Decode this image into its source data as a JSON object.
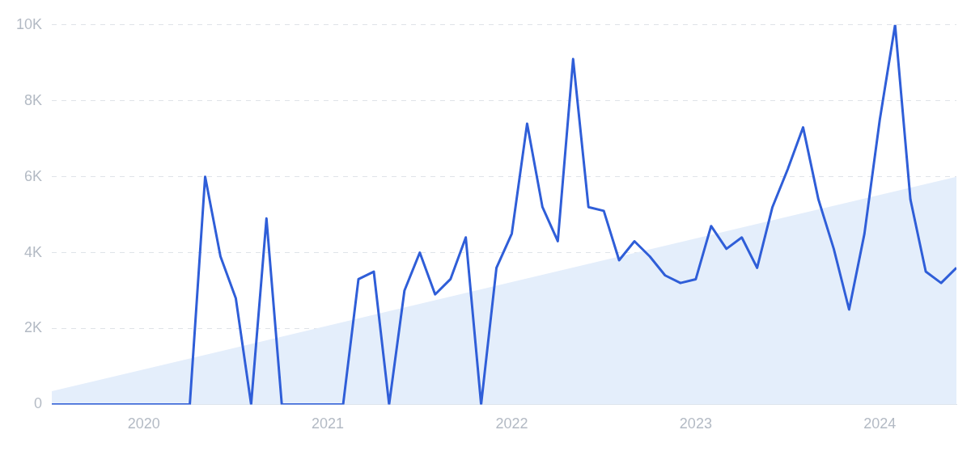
{
  "chart_data": {
    "type": "line",
    "x": [
      "2019-07",
      "2019-08",
      "2019-09",
      "2019-10",
      "2019-11",
      "2019-12",
      "2020-01",
      "2020-02",
      "2020-03",
      "2020-04",
      "2020-05",
      "2020-06",
      "2020-07",
      "2020-08",
      "2020-09",
      "2020-10",
      "2020-11",
      "2020-12",
      "2021-01",
      "2021-02",
      "2021-03",
      "2021-04",
      "2021-05",
      "2021-06",
      "2021-07",
      "2021-08",
      "2021-09",
      "2021-10",
      "2021-11",
      "2021-12",
      "2022-01",
      "2022-02",
      "2022-03",
      "2022-04",
      "2022-05",
      "2022-06",
      "2022-07",
      "2022-08",
      "2022-09",
      "2022-10",
      "2022-11",
      "2022-12",
      "2023-01",
      "2023-02",
      "2023-03",
      "2023-04",
      "2023-05",
      "2023-06",
      "2023-07",
      "2023-08",
      "2023-09",
      "2023-10",
      "2023-11",
      "2023-12",
      "2024-01",
      "2024-02",
      "2024-03",
      "2024-04",
      "2024-05",
      "2024-06"
    ],
    "series": [
      {
        "type": "area",
        "color": "#e4eefb",
        "x": [
          "2019-07",
          "2024-06"
        ],
        "values": [
          350,
          6000
        ]
      },
      {
        "color": "#2f5ed8",
        "values": [
          0,
          0,
          0,
          0,
          0,
          0,
          0,
          0,
          0,
          0,
          6000,
          3900,
          2800,
          0,
          4900,
          0,
          0,
          0,
          0,
          0,
          3300,
          3500,
          0,
          3000,
          4000,
          2900,
          3300,
          4400,
          0,
          3600,
          4500,
          7400,
          5200,
          4300,
          9100,
          5200,
          5100,
          3800,
          4300,
          3900,
          3400,
          3200,
          3300,
          4700,
          4100,
          4400,
          3600,
          5200,
          6200,
          7300,
          5400,
          4100,
          2500,
          4500,
          7500,
          10000,
          5400,
          3500,
          3200,
          3600
        ]
      }
    ],
    "xlim": [
      "2019-07",
      "2024-06"
    ],
    "xticks": [
      {
        "value": "2020-01",
        "label": "2020"
      },
      {
        "value": "2021-01",
        "label": "2021"
      },
      {
        "value": "2022-01",
        "label": "2022"
      },
      {
        "value": "2023-01",
        "label": "2023"
      },
      {
        "value": "2024-01",
        "label": "2024"
      }
    ],
    "ylim": [
      0,
      10000
    ],
    "yticks": [
      0,
      {
        "value": 2000,
        "label": "2K"
      },
      {
        "value": 4000,
        "label": "4K"
      },
      {
        "value": 6000,
        "label": "6K"
      },
      {
        "value": 8000,
        "label": "8K"
      },
      {
        "value": 10000,
        "label": "10K"
      }
    ],
    "grid": "y",
    "marker": "none"
  }
}
